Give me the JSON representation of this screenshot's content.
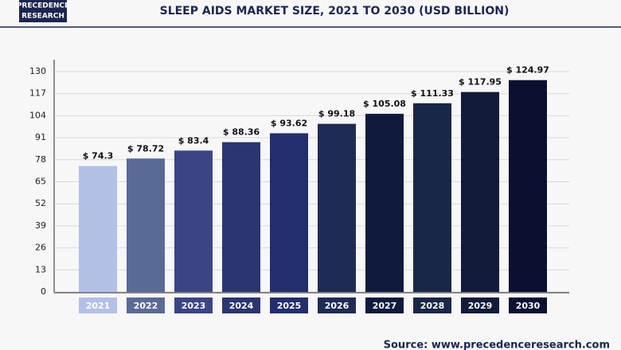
{
  "logo": {
    "line1": "PRECEDENCE",
    "line2": "RESEARCH"
  },
  "source": "Source: www.precedenceresearch.com",
  "chart_data": {
    "type": "bar",
    "title": "SLEEP AIDS MARKET SIZE, 2021 TO 2030 (USD BILLION)",
    "categories": [
      "2021",
      "2022",
      "2023",
      "2024",
      "2025",
      "2026",
      "2027",
      "2028",
      "2029",
      "2030"
    ],
    "values": [
      74.3,
      78.72,
      83.4,
      88.36,
      93.62,
      99.18,
      105.08,
      111.33,
      117.95,
      124.97
    ],
    "value_labels": [
      "$ 74.3",
      "$ 78.72",
      "$ 83.4",
      "$ 88.36",
      "$ 93.62",
      "$ 99.18",
      "$ 105.08",
      "$ 111.33",
      "$ 117.95",
      "$ 124.97"
    ],
    "colors": [
      "#b3c0e6",
      "#5a6a96",
      "#3b4585",
      "#2b3570",
      "#232e6e",
      "#1f2b55",
      "#101a3d",
      "#1a2647",
      "#121b3a",
      "#0a1030"
    ],
    "ylim": [
      0,
      130
    ],
    "yticks": [
      0,
      13,
      26,
      39,
      52,
      65,
      78,
      91,
      104,
      117,
      130
    ],
    "grid": true
  }
}
